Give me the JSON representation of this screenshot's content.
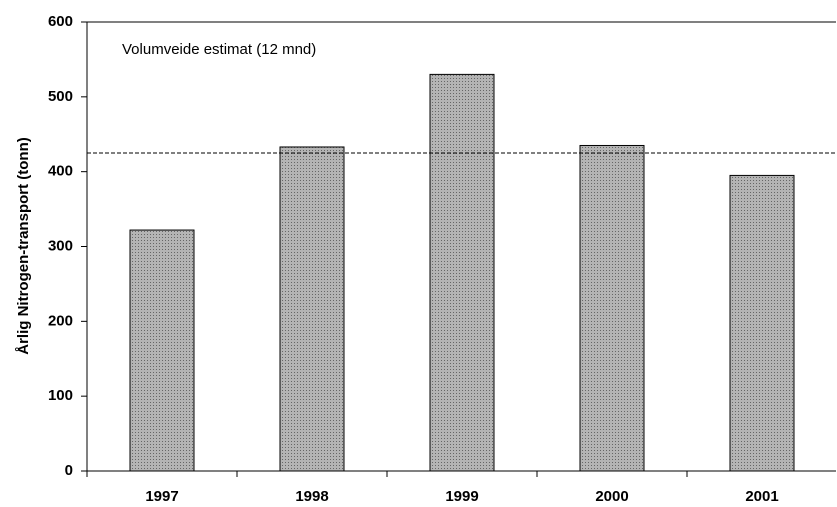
{
  "chart_data": {
    "type": "bar",
    "annotation": "Volumveide estimat (12 mnd)",
    "y_label": "Årlig Nitrogen-transport (tonn)",
    "categories": [
      "1997",
      "1998",
      "1999",
      "2000",
      "2001"
    ],
    "values": [
      322,
      433,
      530,
      435,
      395
    ],
    "color": "#b4b4b4",
    "reference_line": 425,
    "ylim": [
      0,
      600
    ],
    "yticks": [
      0,
      100,
      200,
      300,
      400,
      500,
      600
    ]
  }
}
